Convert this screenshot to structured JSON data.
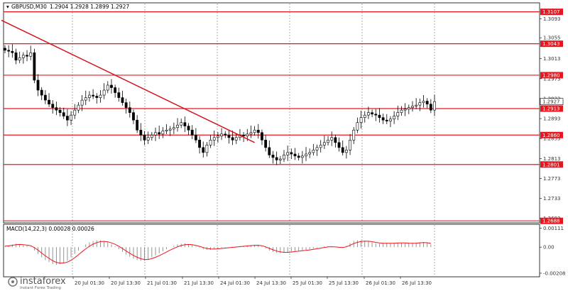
{
  "header": {
    "symbol": "GBPUSD,M30",
    "ohlc": "1.2904 1.2928 1.2899 1.2927"
  },
  "macd_header": "MACD(14,22,3) 0.00028 0.00026",
  "brand": {
    "name": "instaforex",
    "tagline": "Instant Forex Trading"
  },
  "colors": {
    "level_line": "#e8171f",
    "trend_line": "#d2161c",
    "macd_signal": "#e8171f",
    "candle": "#000000",
    "label_bg": "#e8171f"
  },
  "chart_data": [
    {
      "type": "candlestick",
      "title": "",
      "ylim": [
        1.2684,
        1.3125
      ],
      "y_ticks": [
        "1.3093",
        "1.3055",
        "1.3013",
        "1.2973",
        "1.2933",
        "1.2893",
        "1.2853",
        "1.2813",
        "1.2773",
        "1.2733",
        "1.2693"
      ],
      "x_ticks": [
        "20 Jul 01:30",
        "20 Jul 13:30",
        "21 Jul 01:30",
        "21 Jul 13:30",
        "24 Jul 01:30",
        "24 Jul 13:30",
        "25 Jul 01:30",
        "25 Jul 13:30",
        "26 Jul 01:30",
        "26 Jul 13:30"
      ],
      "levels": [
        {
          "label": "1.3107",
          "value": 1.3107
        },
        {
          "label": "1.3043",
          "value": 1.3043
        },
        {
          "label": "1.2980",
          "value": 1.298
        },
        {
          "label": "1.2913",
          "value": 1.2913
        },
        {
          "label": "1.2860",
          "value": 1.286
        },
        {
          "label": "1.2801",
          "value": 1.2801
        },
        {
          "label": "1.2688",
          "value": 1.2688
        }
      ],
      "current_price": {
        "label": "1.2927",
        "value": 1.2927
      },
      "trend_line": {
        "start": [
          0,
          1.309
        ],
        "end": [
          68,
          1.2845
        ]
      },
      "closes": [
        1.303,
        1.3028,
        1.3025,
        1.301,
        1.3015,
        1.302,
        1.3018,
        1.3025,
        1.297,
        1.295,
        1.294,
        1.293,
        1.2922,
        1.2915,
        1.291,
        1.2905,
        1.2898,
        1.289,
        1.29,
        1.291,
        1.292,
        1.293,
        1.2935,
        1.294,
        1.2938,
        1.2935,
        1.294,
        1.295,
        1.296,
        1.2955,
        1.2945,
        1.2935,
        1.2925,
        1.2915,
        1.2905,
        1.289,
        1.287,
        1.286,
        1.285,
        1.2855,
        1.286,
        1.2865,
        1.2862,
        1.2868,
        1.287,
        1.2872,
        1.2875,
        1.288,
        1.2885,
        1.2878,
        1.287,
        1.286,
        1.285,
        1.2835,
        1.2825,
        1.284,
        1.285,
        1.2855,
        1.2858,
        1.2862,
        1.286,
        1.2855,
        1.285,
        1.2855,
        1.286,
        1.2858,
        1.2862,
        1.2865,
        1.287,
        1.2865,
        1.285,
        1.2835,
        1.282,
        1.2815,
        1.281,
        1.2812,
        1.282,
        1.2825,
        1.2822,
        1.2818,
        1.2815,
        1.2818,
        1.2822,
        1.2825,
        1.283,
        1.2835,
        1.284,
        1.2845,
        1.285,
        1.2855,
        1.2845,
        1.2835,
        1.2825,
        1.283,
        1.285,
        1.287,
        1.2885,
        1.2895,
        1.29,
        1.2905,
        1.2902,
        1.29,
        1.2895,
        1.289,
        1.2888,
        1.2892,
        1.2898,
        1.2905,
        1.291,
        1.2912,
        1.2915,
        1.2918,
        1.292,
        1.2925,
        1.2928,
        1.2922,
        1.291,
        1.2927
      ],
      "macd_histogram": [
        3e-05,
        5e-05,
        8e-05,
        0.0001,
        9e-05,
        6e-05,
        4e-05,
        2e-05,
        -0.0001,
        -0.0002,
        -0.0003,
        -0.00038,
        -0.00044,
        -0.0005,
        -0.00052,
        -0.0005,
        -0.00046,
        -0.0004,
        -0.0003,
        -0.0002,
        -0.0001,
        0.0,
        8e-05,
        0.00014,
        0.00018,
        0.0002,
        0.0002,
        0.00018,
        0.00014,
        8e-05,
        2e-05,
        -6e-05,
        -0.00014,
        -0.00022,
        -0.00028,
        -0.00034,
        -0.00038,
        -0.0004,
        -0.0004,
        -0.00036,
        -0.0003,
        -0.00024,
        -0.00018,
        -0.00012,
        -6e-05,
        0.0,
        4e-05,
        8e-05,
        0.0001,
        0.00011,
        9e-05,
        6e-05,
        2e-05,
        -2e-05,
        -6e-05,
        -8e-05,
        -8e-05,
        -6e-05,
        -4e-05,
        -2e-05,
        -1e-05,
        0.0,
        1e-05,
        2e-05,
        3e-05,
        4e-05,
        5e-05,
        6e-05,
        7e-05,
        6e-05,
        2e-05,
        -4e-05,
        -0.0001,
        -0.00014,
        -0.00017,
        -0.00018,
        -0.00017,
        -0.00015,
        -0.00013,
        -0.00011,
        -0.0001,
        -9e-05,
        -8e-05,
        -6e-05,
        -4e-05,
        -2e-05,
        0.0,
        2e-05,
        3e-05,
        2e-05,
        0.0,
        -2e-05,
        -2e-05,
        4e-05,
        0.00012,
        0.00018,
        0.0002,
        0.0002,
        0.00019,
        0.00017,
        0.00014,
        0.00011,
        0.0001,
        0.0001,
        0.00011,
        0.00011,
        0.00012,
        0.00013,
        0.00013,
        0.00012,
        0.00011,
        0.00011,
        0.00012,
        0.00014,
        0.00015,
        0.00012,
        8e-05
      ],
      "macd_y_ticks": [
        "0.00111",
        "0.00",
        "-0.00208"
      ],
      "macd_ylim": [
        -0.00085,
        0.00065
      ]
    }
  ]
}
